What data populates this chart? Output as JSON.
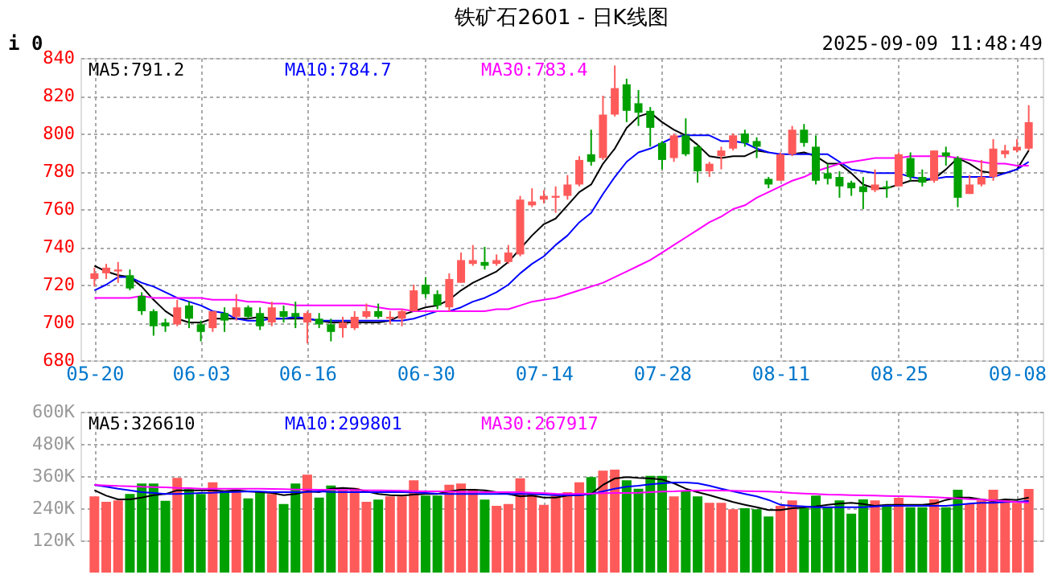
{
  "chart_data": [
    {
      "type": "candlestick",
      "title": "铁矿石2601 - 日K线图",
      "annotations": [
        "i 0",
        "2025-09-09 11:48:49"
      ],
      "categories": [
        "05-20",
        null,
        null,
        null,
        null,
        null,
        null,
        null,
        null,
        "06-03",
        null,
        null,
        null,
        null,
        null,
        null,
        null,
        null,
        "06-16",
        null,
        null,
        null,
        null,
        null,
        null,
        null,
        null,
        null,
        "06-30",
        null,
        null,
        null,
        null,
        null,
        null,
        null,
        null,
        null,
        "07-14",
        null,
        null,
        null,
        null,
        null,
        null,
        null,
        null,
        null,
        "07-28",
        null,
        null,
        null,
        null,
        null,
        null,
        null,
        null,
        null,
        "08-11",
        null,
        null,
        null,
        null,
        null,
        null,
        null,
        null,
        null,
        "08-25",
        null,
        null,
        null,
        null,
        null,
        null,
        null,
        null,
        null,
        "09-08",
        null
      ],
      "ohlc": [
        [
          723,
          729,
          719,
          726
        ],
        [
          726,
          731,
          723,
          729
        ],
        [
          727,
          732,
          721,
          728
        ],
        [
          725,
          728,
          717,
          718
        ],
        [
          714,
          716,
          704,
          706
        ],
        [
          706,
          707,
          693,
          698
        ],
        [
          700,
          702,
          695,
          698
        ],
        [
          699,
          712,
          698,
          708
        ],
        [
          709,
          711,
          697,
          702
        ],
        [
          699,
          701,
          690,
          695
        ],
        [
          697,
          706,
          695,
          706
        ],
        [
          705,
          708,
          695,
          701
        ],
        [
          703,
          715,
          701,
          708
        ],
        [
          708,
          709,
          702,
          703
        ],
        [
          705,
          708,
          696,
          698
        ],
        [
          700,
          711,
          698,
          708
        ],
        [
          706,
          709,
          700,
          703
        ],
        [
          705,
          711,
          697,
          703
        ],
        [
          700,
          706,
          689,
          705
        ],
        [
          702,
          705,
          697,
          699
        ],
        [
          699,
          702,
          690,
          695
        ],
        [
          697,
          703,
          692,
          700
        ],
        [
          697,
          706,
          696,
          703
        ],
        [
          703,
          710,
          702,
          706
        ],
        [
          706,
          710,
          702,
          703
        ],
        [
          702,
          706,
          699,
          703
        ],
        [
          702,
          707,
          698,
          706
        ],
        [
          706,
          720,
          706,
          717
        ],
        [
          720,
          724,
          713,
          715
        ],
        [
          715,
          717,
          707,
          709
        ],
        [
          708,
          726,
          706,
          723
        ],
        [
          721,
          737,
          721,
          733
        ],
        [
          731,
          741,
          730,
          733
        ],
        [
          732,
          740,
          728,
          730
        ],
        [
          731,
          736,
          730,
          733
        ],
        [
          732,
          741,
          731,
          737
        ],
        [
          736,
          767,
          735,
          765
        ],
        [
          762,
          771,
          761,
          764
        ],
        [
          765,
          770,
          763,
          767
        ],
        [
          766,
          772,
          758,
          767
        ],
        [
          767,
          778,
          765,
          773
        ],
        [
          773,
          788,
          772,
          786
        ],
        [
          789,
          802,
          783,
          785
        ],
        [
          787,
          820,
          786,
          810
        ],
        [
          810,
          836,
          809,
          824
        ],
        [
          826,
          829,
          806,
          812
        ],
        [
          816,
          823,
          804,
          811
        ],
        [
          812,
          814,
          793,
          803
        ],
        [
          795,
          796,
          781,
          786
        ],
        [
          787,
          800,
          785,
          799
        ],
        [
          799,
          808,
          788,
          789
        ],
        [
          793,
          794,
          774,
          780
        ],
        [
          780,
          785,
          777,
          784
        ],
        [
          788,
          793,
          781,
          791
        ],
        [
          792,
          800,
          791,
          799
        ],
        [
          800,
          802,
          793,
          795
        ],
        [
          796,
          798,
          787,
          793
        ],
        [
          776,
          777,
          771,
          773
        ],
        [
          775,
          790,
          775,
          789
        ],
        [
          789,
          804,
          788,
          802
        ],
        [
          802,
          805,
          793,
          795
        ],
        [
          793,
          799,
          773,
          775
        ],
        [
          779,
          784,
          773,
          776
        ],
        [
          777,
          780,
          766,
          772
        ],
        [
          774,
          775,
          767,
          771
        ],
        [
          772,
          777,
          760,
          769
        ],
        [
          770,
          781,
          769,
          773
        ],
        [
          772,
          775,
          766,
          771
        ],
        [
          772,
          790,
          772,
          789
        ],
        [
          787,
          790,
          775,
          777
        ],
        [
          777,
          781,
          772,
          774
        ],
        [
          775,
          791,
          774,
          791
        ],
        [
          790,
          793,
          783,
          788
        ],
        [
          787,
          788,
          761,
          766
        ],
        [
          768,
          778,
          768,
          773
        ],
        [
          773,
          786,
          772,
          777
        ],
        [
          777,
          797,
          775,
          792
        ],
        [
          789,
          794,
          787,
          791
        ],
        [
          791,
          797,
          790,
          793
        ],
        [
          792,
          815,
          791,
          806
        ]
      ],
      "colors": [
        "#ff5a5a",
        "#ff5a5a",
        "#ff5a5a",
        "#00a000",
        "#00a000",
        "#00a000",
        "#00a000",
        "#ff5a5a",
        "#00a000",
        "#00a000",
        "#ff5a5a",
        "#00a000",
        "#ff5a5a",
        "#00a000",
        "#00a000",
        "#ff5a5a",
        "#00a000",
        "#00a000",
        "#ff5a5a",
        "#00a000",
        "#00a000",
        "#ff5a5a",
        "#ff5a5a",
        "#ff5a5a",
        "#00a000",
        "#ff5a5a",
        "#ff5a5a",
        "#ff5a5a",
        "#00a000",
        "#00a000",
        "#ff5a5a",
        "#ff5a5a",
        "#ff5a5a",
        "#00a000",
        "#ff5a5a",
        "#ff5a5a",
        "#ff5a5a",
        "#ff5a5a",
        "#ff5a5a",
        "#ff5a5a",
        "#ff5a5a",
        "#ff5a5a",
        "#00a000",
        "#ff5a5a",
        "#ff5a5a",
        "#00a000",
        "#00a000",
        "#00a000",
        "#00a000",
        "#ff5a5a",
        "#00a000",
        "#00a000",
        "#ff5a5a",
        "#ff5a5a",
        "#ff5a5a",
        "#00a000",
        "#00a000",
        "#00a000",
        "#ff5a5a",
        "#ff5a5a",
        "#00a000",
        "#00a000",
        "#00a000",
        "#00a000",
        "#00a000",
        "#00a000",
        "#ff5a5a",
        "#00a000",
        "#ff5a5a",
        "#00a000",
        "#00a000",
        "#ff5a5a",
        "#00a000",
        "#00a000",
        "#ff5a5a",
        "#ff5a5a",
        "#ff5a5a",
        "#ff5a5a",
        "#ff5a5a",
        "#ff5a5a"
      ],
      "series": [
        {
          "name": "MA5:791.2",
          "type": "line",
          "color": "#000000",
          "values": [
            730,
            727,
            725,
            724,
            719,
            712,
            706,
            702,
            700,
            700,
            702,
            702,
            702,
            702,
            703,
            702,
            702,
            702,
            702,
            701,
            700,
            700,
            700,
            700,
            700,
            701,
            704,
            706,
            708,
            709,
            712,
            717,
            721,
            724,
            727,
            732,
            739,
            746,
            752,
            755,
            762,
            769,
            773,
            784,
            792,
            803,
            809,
            811,
            806,
            802,
            799,
            794,
            788,
            787,
            788,
            788,
            791,
            790,
            null,
            789,
            790,
            788,
            784,
            784,
            779,
            773,
            771,
            771,
            773,
            775,
            775,
            776,
            781,
            787,
            784,
            780,
            779,
            779,
            781,
            791
          ]
        },
        {
          "name": "MA10:784.7",
          "type": "line",
          "color": "#0000ff",
          "values": [
            717,
            720,
            724,
            724,
            721,
            719,
            716,
            713,
            711,
            709,
            706,
            705,
            702,
            701,
            701,
            702,
            702,
            703,
            702,
            701,
            701,
            701,
            701,
            701,
            701,
            701,
            701,
            702,
            704,
            706,
            706,
            708,
            711,
            713,
            716,
            720,
            726,
            731,
            735,
            741,
            746,
            753,
            758,
            768,
            777,
            785,
            790,
            792,
            795,
            798,
            799,
            799,
            799,
            796,
            796,
            795,
            792,
            790,
            789,
            789,
            789,
            789,
            789,
            785,
            781,
            780,
            779,
            779,
            779,
            777,
            776,
            776,
            777,
            777,
            777,
            777,
            777,
            779,
            781,
            785
          ]
        },
        {
          "name": "MA30:783.4",
          "type": "line",
          "color": "#ff00ff",
          "values": [
            713,
            713,
            713,
            713,
            714,
            713,
            713,
            713,
            713,
            713,
            712,
            712,
            712,
            711,
            711,
            710,
            710,
            709,
            709,
            709,
            709,
            709,
            709,
            709,
            708,
            707,
            707,
            706,
            706,
            706,
            706,
            706,
            706,
            706,
            707,
            707,
            709,
            711,
            712,
            713,
            715,
            717,
            719,
            721,
            724,
            727,
            730,
            733,
            737,
            741,
            745,
            749,
            753,
            756,
            760,
            762,
            766,
            769,
            772,
            775,
            777,
            780,
            782,
            784,
            785,
            786,
            787,
            787,
            787,
            788,
            788,
            788,
            788,
            787,
            786,
            785,
            784,
            784,
            783,
            783
          ]
        }
      ],
      "ylim": [
        680,
        840
      ],
      "yticks": [
        680,
        700,
        720,
        740,
        760,
        780,
        800,
        820,
        840
      ],
      "grid": true,
      "legend": "top"
    },
    {
      "type": "bar",
      "categories": [
        null,
        null,
        null,
        null,
        null,
        null,
        null,
        null,
        null,
        null,
        null,
        null,
        null,
        null,
        null,
        null,
        null,
        null,
        null,
        null,
        null,
        null,
        null,
        null,
        null,
        null,
        null,
        null,
        null,
        null,
        null,
        null,
        null,
        null,
        null,
        null,
        null,
        null,
        null,
        null,
        null,
        null,
        null,
        null,
        null,
        null,
        null,
        null,
        null,
        null,
        null,
        null,
        null,
        null,
        null,
        null,
        null,
        null,
        null,
        null,
        null,
        null,
        null,
        null,
        null,
        null,
        null,
        null,
        null,
        null,
        null,
        null,
        null,
        null,
        null,
        null,
        null,
        null,
        null,
        null
      ],
      "values": [
        284000,
        264000,
        269000,
        293000,
        332000,
        332000,
        268000,
        353000,
        311000,
        293000,
        337000,
        303000,
        309000,
        277000,
        300000,
        293000,
        256000,
        332000,
        365000,
        280000,
        325000,
        309000,
        316000,
        264000,
        272000,
        284000,
        284000,
        344000,
        287000,
        287000,
        328000,
        332000,
        311000,
        272000,
        249000,
        256000,
        352000,
        300000,
        253000,
        287000,
        300000,
        337000,
        356000,
        380000,
        384000,
        344000,
        313000,
        361000,
        361000,
        284000,
        304000,
        284000,
        260000,
        260000,
        236000,
        240000,
        236000,
        209000,
        249000,
        269000,
        240000,
        287000,
        243000,
        269000,
        220000,
        273000,
        269000,
        249000,
        279000,
        244000,
        244000,
        273000,
        244000,
        309000,
        256000,
        269000,
        309000,
        273000,
        260000,
        312000
      ],
      "colors": [
        "#ff5a5a",
        "#ff5a5a",
        "#ff5a5a",
        "#00a000",
        "#00a000",
        "#00a000",
        "#00a000",
        "#ff5a5a",
        "#00a000",
        "#00a000",
        "#ff5a5a",
        "#00a000",
        "#ff5a5a",
        "#00a000",
        "#00a000",
        "#ff5a5a",
        "#00a000",
        "#00a000",
        "#ff5a5a",
        "#00a000",
        "#00a000",
        "#ff5a5a",
        "#ff5a5a",
        "#ff5a5a",
        "#00a000",
        "#ff5a5a",
        "#ff5a5a",
        "#ff5a5a",
        "#00a000",
        "#00a000",
        "#ff5a5a",
        "#ff5a5a",
        "#ff5a5a",
        "#00a000",
        "#ff5a5a",
        "#ff5a5a",
        "#ff5a5a",
        "#ff5a5a",
        "#ff5a5a",
        "#ff5a5a",
        "#ff5a5a",
        "#ff5a5a",
        "#00a000",
        "#ff5a5a",
        "#ff5a5a",
        "#00a000",
        "#00a000",
        "#00a000",
        "#00a000",
        "#ff5a5a",
        "#00a000",
        "#00a000",
        "#ff5a5a",
        "#ff5a5a",
        "#ff5a5a",
        "#00a000",
        "#00a000",
        "#00a000",
        "#ff5a5a",
        "#ff5a5a",
        "#00a000",
        "#00a000",
        "#00a000",
        "#00a000",
        "#00a000",
        "#00a000",
        "#ff5a5a",
        "#00a000",
        "#ff5a5a",
        "#00a000",
        "#00a000",
        "#ff5a5a",
        "#00a000",
        "#00a000",
        "#ff5a5a",
        "#ff5a5a",
        "#ff5a5a",
        "#ff5a5a",
        "#ff5a5a",
        "#ff5a5a"
      ],
      "series": [
        {
          "name": "MA5:326610",
          "type": "line",
          "color": "#000000",
          "values": [
            307000,
            287000,
            273000,
            273000,
            280000,
            289000,
            293000,
            307000,
            307000,
            307000,
            307000,
            304000,
            307000,
            303000,
            300000,
            297000,
            289000,
            293000,
            303000,
            300000,
            313000,
            316000,
            313000,
            303000,
            293000,
            289000,
            287000,
            291000,
            293000,
            293000,
            303000,
            309000,
            309000,
            307000,
            300000,
            293000,
            284000,
            287000,
            280000,
            280000,
            287000,
            289000,
            293000,
            327000,
            351000,
            356000,
            353000,
            351000,
            347000,
            333000,
            313000,
            300000,
            289000,
            276000,
            263000,
            253000,
            244000,
            233000,
            233000,
            240000,
            243000,
            247000,
            253000,
            257000,
            260000,
            256000,
            249000,
            253000,
            253000,
            253000,
            253000,
            257000,
            271000,
            280000,
            280000,
            273000,
            267000,
            273000,
            271000,
            280000
          ]
        },
        {
          "name": "MA10:299801",
          "type": "line",
          "color": "#0000ff",
          "values": [
            327000,
            320000,
            313000,
            307000,
            300000,
            297000,
            293000,
            293000,
            295000,
            297000,
            298000,
            300000,
            301000,
            303000,
            302000,
            300000,
            300000,
            300000,
            301000,
            303000,
            301000,
            300000,
            300000,
            300000,
            300000,
            300000,
            300000,
            299000,
            297000,
            294000,
            293000,
            293000,
            293000,
            293000,
            293000,
            293000,
            293000,
            293000,
            291000,
            289000,
            289000,
            289000,
            293000,
            303000,
            313000,
            320000,
            324000,
            329000,
            333000,
            336000,
            336000,
            333000,
            324000,
            313000,
            303000,
            293000,
            284000,
            271000,
            253000,
            249000,
            247000,
            244000,
            244000,
            244000,
            244000,
            244000,
            247000,
            249000,
            249000,
            249000,
            249000,
            249000,
            249000,
            253000,
            257000,
            260000,
            260000,
            263000,
            264000,
            267000
          ]
        },
        {
          "name": "MA30:267917",
          "type": "line",
          "color": "#ff00ff",
          "values": [
            327000,
            325000,
            323000,
            322000,
            320000,
            319000,
            318000,
            316000,
            315000,
            313000,
            313000,
            313000,
            313000,
            313000,
            313000,
            312000,
            311000,
            310000,
            310000,
            309000,
            309000,
            308000,
            308000,
            307000,
            307000,
            306000,
            305000,
            304000,
            303000,
            303000,
            302000,
            301000,
            301000,
            300000,
            300000,
            300000,
            300000,
            298000,
            296000,
            294000,
            293000,
            294000,
            295000,
            296000,
            297000,
            297000,
            298000,
            300000,
            302000,
            303000,
            305000,
            306000,
            307000,
            306000,
            305000,
            304000,
            303000,
            302000,
            300000,
            297000,
            295000,
            293000,
            291000,
            290000,
            289000,
            288000,
            287000,
            286000,
            285000,
            284000,
            283000,
            281000,
            279000,
            277000,
            274000,
            272000,
            269000,
            266000,
            263000,
            261000
          ]
        }
      ],
      "ylim": [
        120000,
        600000
      ],
      "yticks": [
        {
          "value": 120000,
          "label": "120K"
        },
        {
          "value": 240000,
          "label": "240K"
        },
        {
          "value": 360000,
          "label": "360K"
        },
        {
          "value": 480000,
          "label": "480K"
        },
        {
          "value": 600000,
          "label": "600K"
        }
      ],
      "grid": true,
      "legend": "top"
    }
  ]
}
